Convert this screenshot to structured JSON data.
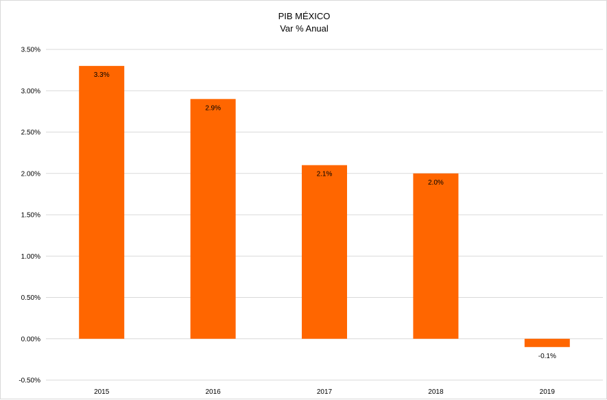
{
  "chart_data": {
    "type": "bar",
    "title": "PIB MÉXICO",
    "subtitle": "Var % Anual",
    "xlabel": "",
    "ylabel": "",
    "categories": [
      "2015",
      "2016",
      "2017",
      "2018",
      "2019"
    ],
    "values": [
      3.3,
      2.9,
      2.1,
      2.0,
      -0.1
    ],
    "data_labels": [
      "3.3%",
      "2.9%",
      "2.1%",
      "2.0%",
      "-0.1%"
    ],
    "ylim": [
      -0.5,
      3.5
    ],
    "y_ticks": [
      3.5,
      3.0,
      2.5,
      2.0,
      1.5,
      1.0,
      0.5,
      0.0,
      -0.5
    ],
    "y_tick_labels": [
      "3.50%",
      "3.00%",
      "2.50%",
      "2.00%",
      "1.50%",
      "1.00%",
      "0.50%",
      "0.00%",
      "-0.50%"
    ],
    "grid": true,
    "legend": "none",
    "colors": {
      "bar": "#ff6600",
      "grid": "#d9d9d9",
      "text": "#000000"
    }
  }
}
